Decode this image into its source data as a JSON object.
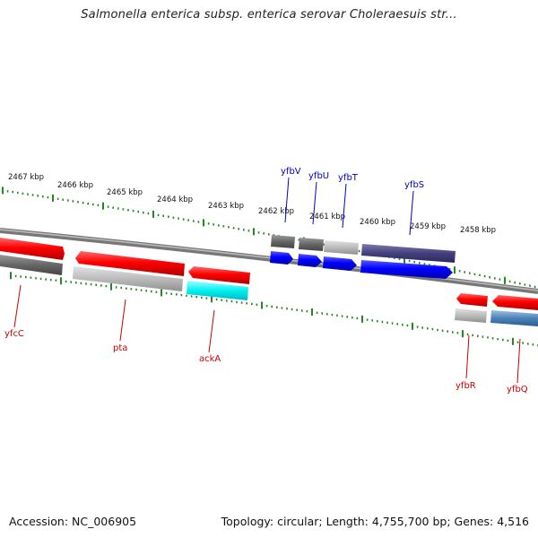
{
  "title": "Salmonella enterica subsp. enterica serovar Choleraesuis str...",
  "footer": {
    "accession": "Accession: NC_006905",
    "topology": "Topology: circular; Length: 4,755,700 bp; Genes: 4,516"
  },
  "colors": {
    "forward_label": "#0000cc",
    "reverse_label": "#cc0000",
    "tick": "#228822",
    "backbone": "#777777"
  },
  "ruler": [
    {
      "label": "2467 kbp"
    },
    {
      "label": "2466 kbp"
    },
    {
      "label": "2465 kbp"
    },
    {
      "label": "2464 kbp"
    },
    {
      "label": "2463 kbp"
    },
    {
      "label": "2462 kbp"
    },
    {
      "label": "2461 kbp"
    },
    {
      "label": "2460 kbp"
    },
    {
      "label": "2459 kbp"
    },
    {
      "label": "2458 kbp"
    }
  ],
  "forward_genes": [
    {
      "name": "yfbV"
    },
    {
      "name": "yfbU"
    },
    {
      "name": "yfbT"
    },
    {
      "name": "yfbS"
    }
  ],
  "reverse_genes": [
    {
      "name": "yfcC"
    },
    {
      "name": "pta"
    },
    {
      "name": "ackA"
    },
    {
      "name": "yfbR"
    },
    {
      "name": "yfbQ"
    }
  ]
}
